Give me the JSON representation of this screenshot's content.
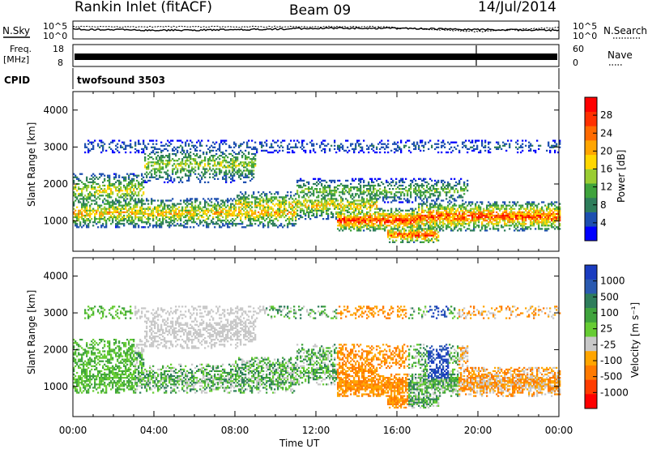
{
  "header": {
    "station": "Rankin Inlet (fitACF)",
    "beam": "Beam 09",
    "date": "14/Jul/2014"
  },
  "top_panels": {
    "nsky_label": "N.Sky",
    "nsearch_label": "N.Search",
    "noise_ticks": [
      "10^5",
      "10^0"
    ],
    "freq_label_line1": "Freq.",
    "freq_label_line2": "[MHz]",
    "freq_ticks": [
      "18",
      "8"
    ],
    "nave_label": "Nave",
    "nave_ticks": [
      "60",
      "0"
    ],
    "cpid_label": "CPID",
    "cpid_value": "twofsound 3503"
  },
  "chart_data": [
    {
      "type": "heatmap",
      "title": "",
      "xlabel": "Time UT",
      "ylabel": "Slant Range [km]",
      "xticks": [
        "00:00",
        "04:00",
        "08:00",
        "12:00",
        "16:00",
        "20:00",
        "00:00"
      ],
      "xlim_hours": [
        0,
        24
      ],
      "yticks": [
        "1000",
        "2000",
        "3000",
        "4000"
      ],
      "ylim_km": [
        180,
        4500
      ],
      "colorbar": {
        "label": "Power [dB]",
        "ticks": [
          "4",
          "8",
          "12",
          "16",
          "20",
          "24",
          "28"
        ],
        "colors": [
          "#0000ff",
          "#1d4fb0",
          "#2e7d5b",
          "#3fa33c",
          "#9acd32",
          "#ffd700",
          "#ffa500",
          "#ff6a00",
          "#ff3000",
          "#ff0000"
        ]
      }
    },
    {
      "type": "heatmap",
      "title": "",
      "xlabel": "Time UT",
      "ylabel": "Slant Range [km]",
      "xticks": [
        "00:00",
        "04:00",
        "08:00",
        "12:00",
        "16:00",
        "20:00",
        "00:00"
      ],
      "xlim_hours": [
        0,
        24
      ],
      "yticks": [
        "1000",
        "2000",
        "3000",
        "4000"
      ],
      "ylim_km": [
        180,
        4500
      ],
      "colorbar": {
        "label": "Velocity [m s⁻¹]",
        "ticks": [
          "1000",
          "500",
          "100",
          "25",
          "-25",
          "-100",
          "-500",
          "-1000"
        ],
        "colors": [
          "#1a3cc0",
          "#2a5ab0",
          "#2e7d5b",
          "#3fa33c",
          "#66cc33",
          "#c8c8c8",
          "#ffa500",
          "#ff7a00",
          "#ff3c00",
          "#ff0000"
        ]
      }
    }
  ]
}
